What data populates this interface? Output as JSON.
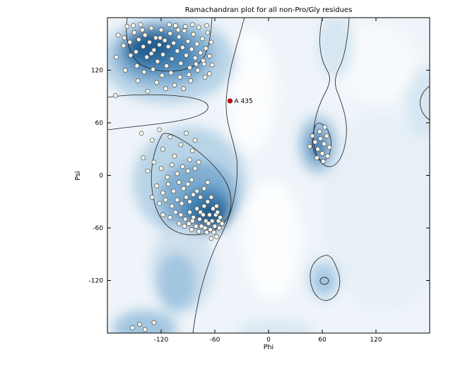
{
  "chart_data": {
    "type": "scatter",
    "title": "Ramachandran plot for all non-Pro/Gly residues",
    "xlabel": "Phi",
    "ylabel": "Psi",
    "xlim": [
      -180,
      180
    ],
    "ylim": [
      -180,
      180
    ],
    "xticks": [
      -120,
      -60,
      0,
      60,
      120
    ],
    "yticks": [
      120,
      60,
      0,
      -60,
      -120
    ],
    "grid": false,
    "legend": "none",
    "background": "blue kernel-density shading with black favoured/allowed region contours",
    "density_palette": [
      "#eef4f9",
      "#b9d4e7",
      "#7fadd1",
      "#4583b3",
      "#205e92"
    ],
    "highlight_point": {
      "label": "A 435",
      "phi": -43,
      "psi": 85
    },
    "points": [
      [
        -168,
        160
      ],
      [
        -162,
        148
      ],
      [
        -158,
        170
      ],
      [
        -155,
        152
      ],
      [
        -150,
        163
      ],
      [
        -148,
        141
      ],
      [
        -145,
        155
      ],
      [
        -143,
        172
      ],
      [
        -140,
        147
      ],
      [
        -138,
        160
      ],
      [
        -136,
        135
      ],
      [
        -133,
        152
      ],
      [
        -131,
        168
      ],
      [
        -128,
        143
      ],
      [
        -126,
        157
      ],
      [
        -124,
        130
      ],
      [
        -122,
        149
      ],
      [
        -120,
        166
      ],
      [
        -118,
        138
      ],
      [
        -116,
        154
      ],
      [
        -114,
        125
      ],
      [
        -112,
        147
      ],
      [
        -110,
        162
      ],
      [
        -108,
        133
      ],
      [
        -106,
        151
      ],
      [
        -104,
        171
      ],
      [
        -102,
        142
      ],
      [
        -100,
        158
      ],
      [
        -98,
        128
      ],
      [
        -96,
        146
      ],
      [
        -94,
        165
      ],
      [
        -92,
        137
      ],
      [
        -90,
        153
      ],
      [
        -88,
        123
      ],
      [
        -86,
        144
      ],
      [
        -84,
        161
      ],
      [
        -82,
        134
      ],
      [
        -80,
        150
      ],
      [
        -78,
        169
      ],
      [
        -76,
        140
      ],
      [
        -74,
        156
      ],
      [
        -72,
        127
      ],
      [
        -70,
        145
      ],
      [
        -68,
        163
      ],
      [
        -66,
        136
      ],
      [
        -64,
        152
      ],
      [
        -147,
        125
      ],
      [
        -139,
        118
      ],
      [
        -129,
        121
      ],
      [
        -119,
        114
      ],
      [
        -109,
        117
      ],
      [
        -99,
        112
      ],
      [
        -89,
        115
      ],
      [
        -154,
        137
      ],
      [
        -146,
        108
      ],
      [
        -160,
        120
      ],
      [
        -170,
        135
      ],
      [
        -93,
        170
      ],
      [
        -85,
        172
      ],
      [
        -69,
        171
      ],
      [
        -121,
        157
      ],
      [
        -111,
        172
      ],
      [
        -101,
        166
      ],
      [
        -131,
        139
      ],
      [
        -141,
        166
      ],
      [
        -151,
        171
      ],
      [
        -161,
        157
      ],
      [
        -105,
        103
      ],
      [
        -95,
        99
      ],
      [
        -115,
        99
      ],
      [
        -125,
        106
      ],
      [
        -135,
        96
      ],
      [
        -87,
        108
      ],
      [
        -79,
        120
      ],
      [
        -71,
        112
      ],
      [
        -63,
        126
      ],
      [
        -66,
        116
      ],
      [
        -73,
        131
      ],
      [
        -81,
        127
      ],
      [
        -171,
        91
      ],
      [
        -142,
        48
      ],
      [
        -130,
        40
      ],
      [
        -122,
        52
      ],
      [
        -118,
        30
      ],
      [
        -110,
        44
      ],
      [
        -105,
        22
      ],
      [
        -98,
        35
      ],
      [
        -92,
        48
      ],
      [
        -88,
        18
      ],
      [
        -140,
        20
      ],
      [
        -135,
        5
      ],
      [
        -128,
        15
      ],
      [
        -120,
        8
      ],
      [
        -113,
        -2
      ],
      [
        -108,
        12
      ],
      [
        -102,
        2
      ],
      [
        -96,
        10
      ],
      [
        -90,
        5
      ],
      [
        -85,
        28
      ],
      [
        -82,
        40
      ],
      [
        -125,
        -12
      ],
      [
        -118,
        -20
      ],
      [
        -112,
        -10
      ],
      [
        -106,
        -18
      ],
      [
        -100,
        -8
      ],
      [
        -95,
        -15
      ],
      [
        -90,
        -10
      ],
      [
        -86,
        -5
      ],
      [
        -82,
        8
      ],
      [
        -78,
        15
      ],
      [
        -130,
        -25
      ],
      [
        -122,
        -32
      ],
      [
        -115,
        -28
      ],
      [
        -108,
        -35
      ],
      [
        -102,
        -28
      ],
      [
        -97,
        -32
      ],
      [
        -92,
        -25
      ],
      [
        -88,
        -30
      ],
      [
        -84,
        -22
      ],
      [
        -80,
        -18
      ],
      [
        -76,
        -25
      ],
      [
        -72,
        -15
      ],
      [
        -68,
        -8
      ],
      [
        -118,
        -45
      ],
      [
        -110,
        -48
      ],
      [
        -104,
        -42
      ],
      [
        -98,
        -45
      ],
      [
        -93,
        -50
      ],
      [
        -88,
        -42
      ],
      [
        -84,
        -48
      ],
      [
        -80,
        -38
      ],
      [
        -76,
        -42
      ],
      [
        -72,
        -35
      ],
      [
        -68,
        -30
      ],
      [
        -64,
        -25
      ],
      [
        -100,
        -55
      ],
      [
        -94,
        -58
      ],
      [
        -89,
        -55
      ],
      [
        -85,
        -52
      ],
      [
        -81,
        -58
      ],
      [
        -77,
        -50
      ],
      [
        -73,
        -45
      ],
      [
        -70,
        -52
      ],
      [
        -66,
        -45
      ],
      [
        -62,
        -38
      ],
      [
        -59,
        -45
      ],
      [
        -75,
        -58
      ],
      [
        -71,
        -60
      ],
      [
        -67,
        -55
      ],
      [
        -63,
        -52
      ],
      [
        -60,
        -58
      ],
      [
        -56,
        -52
      ],
      [
        -57,
        -42
      ],
      [
        -65,
        -62
      ],
      [
        -61,
        -65
      ],
      [
        -69,
        -65
      ],
      [
        -78,
        -64
      ],
      [
        -86,
        -62
      ],
      [
        -55,
        -60
      ],
      [
        -52,
        -55
      ],
      [
        -58,
        -35
      ],
      [
        -54,
        -48
      ],
      [
        58,
        42
      ],
      [
        62,
        36
      ],
      [
        55,
        30
      ],
      [
        65,
        45
      ],
      [
        60,
        25
      ],
      [
        52,
        38
      ],
      [
        68,
        32
      ],
      [
        57,
        50
      ],
      [
        63,
        55
      ],
      [
        49,
        45
      ],
      [
        54,
        20
      ],
      [
        61,
        16
      ],
      [
        46,
        33
      ],
      [
        66,
        22
      ],
      [
        -152,
        -174
      ],
      [
        -144,
        -170
      ],
      [
        -138,
        -176
      ],
      [
        -128,
        -168
      ],
      [
        -64,
        -72
      ],
      [
        -58,
        -70
      ]
    ]
  },
  "colors": {
    "point_fill": "#fffdf0",
    "point_stroke": "#4a4a4a",
    "highlight_fill": "#cc1111",
    "highlight_stroke": "#7a0000",
    "contour": "#1c1c1c",
    "plot_base": "#eef4f9"
  }
}
